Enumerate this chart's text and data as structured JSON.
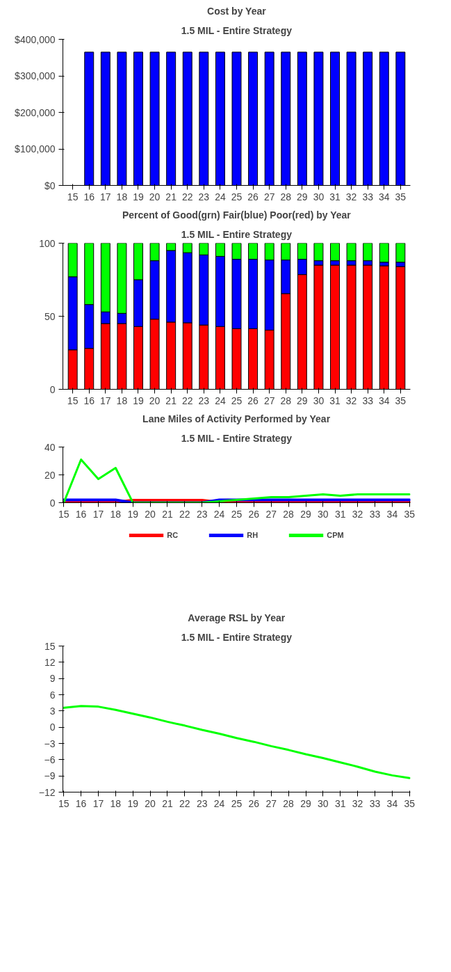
{
  "chart_data": [
    {
      "type": "bar",
      "title": "Cost by Year",
      "subtitle": "1.5 MIL - Entire Strategy",
      "categories": [
        "15",
        "16",
        "17",
        "18",
        "19",
        "20",
        "21",
        "22",
        "23",
        "24",
        "25",
        "26",
        "27",
        "28",
        "29",
        "30",
        "31",
        "32",
        "33",
        "34",
        "35"
      ],
      "series": [
        {
          "color": "#0000ff",
          "values": [
            null,
            365000,
            365000,
            365000,
            365000,
            365000,
            365000,
            365000,
            365000,
            365000,
            365000,
            365000,
            365000,
            365000,
            365000,
            365000,
            365000,
            365000,
            365000,
            365000,
            365000
          ]
        }
      ],
      "ylim": [
        0,
        400000
      ],
      "yticks": [
        {
          "value": 0,
          "label": "$0"
        },
        {
          "value": 100000,
          "label": "$100,000"
        },
        {
          "value": 200000,
          "label": "$200,000"
        },
        {
          "value": 300000,
          "label": "$300,000"
        },
        {
          "value": 400000,
          "label": "$400,000"
        }
      ],
      "grid": false,
      "legend": false
    },
    {
      "type": "bar",
      "stacked": true,
      "title": "Percent of Good(grn) Fair(blue) Poor(red) by Year",
      "subtitle": "1.5 MIL - Entire Strategy",
      "categories": [
        "15",
        "16",
        "17",
        "18",
        "19",
        "20",
        "21",
        "22",
        "23",
        "24",
        "25",
        "26",
        "27",
        "28",
        "29",
        "30",
        "31",
        "32",
        "33",
        "34",
        "35"
      ],
      "series": [
        {
          "color": "#ff0000",
          "values": [
            27,
            28,
            45,
            45,
            43,
            48,
            46,
            45.5,
            44,
            43,
            41.5,
            41.5,
            40.5,
            65.5,
            78.5,
            85,
            85,
            85,
            85,
            84.5,
            84
          ]
        },
        {
          "color": "#0000ff",
          "values": [
            50,
            30,
            8,
            7,
            32,
            40,
            49,
            48,
            48,
            48,
            47.5,
            47.5,
            48,
            23,
            10.5,
            3,
            3,
            3,
            3,
            2.5,
            3
          ]
        },
        {
          "color": "#00ff00",
          "values": [
            23,
            42,
            47,
            48,
            25,
            12,
            5,
            6.5,
            8,
            9,
            11,
            11,
            11.5,
            11.5,
            11,
            12,
            12,
            12,
            12,
            13,
            13
          ]
        }
      ],
      "ylim": [
        0,
        100
      ],
      "yticks": [
        0,
        50,
        100
      ],
      "grid": false,
      "legend": false
    },
    {
      "type": "line",
      "title": "Lane Miles of Activity Performed by Year",
      "subtitle": "1.5 MIL - Entire Strategy",
      "categories": [
        "15",
        "16",
        "17",
        "18",
        "19",
        "20",
        "21",
        "22",
        "23",
        "24",
        "25",
        "26",
        "27",
        "28",
        "29",
        "30",
        "31",
        "32",
        "33",
        "34",
        "35"
      ],
      "series": [
        {
          "name": "RC",
          "color": "#ff0000",
          "values": [
            0,
            0,
            0,
            0,
            1.5,
            1.5,
            1.5,
            1.5,
            1.5,
            0,
            0,
            0,
            0,
            0,
            0,
            0,
            0,
            0,
            0,
            0,
            0
          ]
        },
        {
          "name": "RH",
          "color": "#0000ff",
          "values": [
            2,
            2,
            2,
            2,
            0,
            0,
            0,
            0,
            0,
            2,
            2,
            2,
            2,
            2,
            2,
            2,
            2,
            2,
            2,
            2,
            2
          ]
        },
        {
          "name": "CPM",
          "color": "#00ff00",
          "values": [
            0,
            31,
            17,
            25,
            0,
            0,
            0,
            0,
            0,
            1,
            2,
            3,
            4,
            4,
            5,
            6,
            5,
            6,
            6,
            6,
            6
          ]
        }
      ],
      "ylim": [
        0,
        40
      ],
      "yticks": [
        0,
        20,
        40
      ],
      "grid": false,
      "legend": "bottom"
    },
    {
      "type": "line",
      "title": "Average RSL by Year",
      "subtitle": "1.5 MIL - Entire Strategy",
      "categories": [
        "15",
        "16",
        "17",
        "18",
        "19",
        "20",
        "21",
        "22",
        "23",
        "24",
        "25",
        "26",
        "27",
        "28",
        "29",
        "30",
        "31",
        "32",
        "33",
        "34",
        "35"
      ],
      "series": [
        {
          "color": "#00ff00",
          "values": [
            3.6,
            3.9,
            3.8,
            3.2,
            2.5,
            1.8,
            1,
            0.3,
            -0.5,
            -1.2,
            -2,
            -2.7,
            -3.5,
            -4.2,
            -5,
            -5.7,
            -6.5,
            -7.3,
            -8.2,
            -8.9,
            -9.4
          ]
        }
      ],
      "ylim": [
        -12,
        15
      ],
      "yticks": [
        -12,
        -9,
        -6,
        -3,
        0,
        3,
        6,
        9,
        12,
        15
      ],
      "grid": false,
      "legend": false
    }
  ]
}
